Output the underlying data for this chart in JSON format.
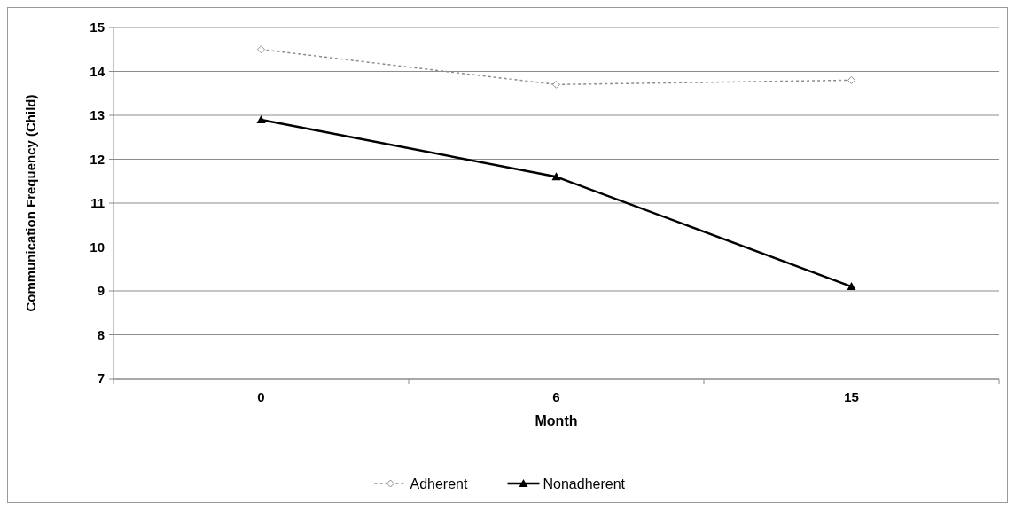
{
  "chart_data": {
    "type": "line",
    "xlabel": "Month",
    "ylabel": "Communication Frequency (Child)",
    "categories": [
      "0",
      "6",
      "15"
    ],
    "series": [
      {
        "name": "Adherent",
        "color": "#8c8c8c",
        "values": [
          14.5,
          13.7,
          13.8
        ],
        "marker": "diamond",
        "line_style": "dotted"
      },
      {
        "name": "Nonadherent",
        "color": "#000000",
        "values": [
          12.9,
          11.6,
          9.1
        ],
        "marker": "triangle",
        "line_style": "solid"
      }
    ],
    "ylim": [
      7,
      15
    ],
    "yticks": [
      7,
      8,
      9,
      10,
      11,
      12,
      13,
      14,
      15
    ],
    "grid": "y",
    "legend": "bottom"
  }
}
